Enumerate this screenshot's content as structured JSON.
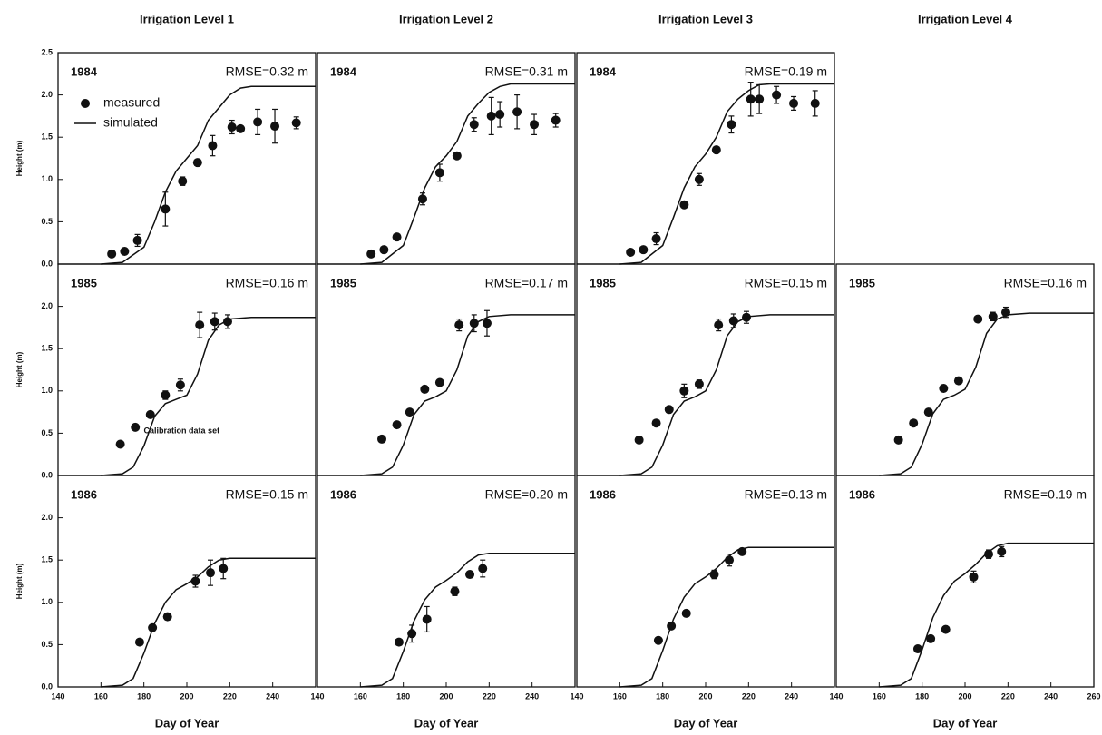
{
  "column_titles": [
    "Irrigation Level 1",
    "Irrigation Level 2",
    "Irrigation Level 3",
    "Irrigation Level 4"
  ],
  "color": "#111111",
  "chart_data": [
    {
      "type": "line",
      "year": "1984",
      "annotation": "RMSE=0.32 m",
      "legend": "upper left",
      "xlim": [
        140,
        260
      ],
      "ylim": [
        0,
        2.5
      ],
      "ylabel": "Height (m)",
      "yticks": [
        {
          "value": 0,
          "label": "0.0"
        },
        {
          "value": 0.5,
          "label": "0.5"
        },
        {
          "value": 1,
          "label": "1.0"
        },
        {
          "value": 1.5,
          "label": "1.5"
        },
        {
          "value": 2,
          "label": "2.0"
        },
        {
          "value": 2.5,
          "label": "2.5"
        }
      ],
      "series": [
        {
          "name": "measured",
          "x": [
            165,
            171,
            177,
            190,
            198,
            205,
            212,
            221,
            225,
            233,
            241,
            251
          ],
          "values": [
            0.12,
            0.15,
            0.28,
            0.65,
            0.98,
            1.2,
            1.4,
            1.62,
            1.6,
            1.68,
            1.63,
            1.67
          ],
          "errors": [
            0,
            0,
            0.07,
            0.2,
            0.05,
            0,
            0.12,
            0.08,
            0,
            0.15,
            0.2,
            0.07
          ]
        },
        {
          "name": "simulated",
          "x": [
            160,
            170,
            180,
            185,
            190,
            195,
            200,
            205,
            210,
            215,
            220,
            225,
            230,
            260
          ],
          "values": [
            0,
            0.02,
            0.2,
            0.5,
            0.85,
            1.1,
            1.25,
            1.4,
            1.7,
            1.85,
            2.0,
            2.08,
            2.1,
            2.1
          ]
        }
      ]
    },
    {
      "type": "line",
      "year": "1984",
      "annotation": "RMSE=0.31 m",
      "xlim": [
        140,
        260
      ],
      "ylim": [
        0,
        2.5
      ],
      "series": [
        {
          "x": [
            165,
            171,
            177,
            189,
            197,
            205,
            213,
            221,
            225,
            233,
            241,
            251
          ],
          "values": [
            0.12,
            0.17,
            0.32,
            0.77,
            1.08,
            1.28,
            1.65,
            1.75,
            1.77,
            1.8,
            1.65,
            1.7
          ],
          "errors": [
            0,
            0,
            0,
            0.07,
            0.1,
            0,
            0.08,
            0.22,
            0.15,
            0.2,
            0.12,
            0.08
          ]
        },
        {
          "x": [
            160,
            170,
            180,
            185,
            190,
            195,
            200,
            205,
            210,
            215,
            220,
            225,
            230,
            260
          ],
          "values": [
            0,
            0.02,
            0.22,
            0.55,
            0.9,
            1.15,
            1.28,
            1.45,
            1.75,
            1.9,
            2.03,
            2.1,
            2.13,
            2.13
          ]
        }
      ]
    },
    {
      "type": "line",
      "year": "1984",
      "annotation": "RMSE=0.19 m",
      "xlim": [
        140,
        260
      ],
      "ylim": [
        0,
        2.5
      ],
      "series": [
        {
          "x": [
            165,
            171,
            177,
            190,
            197,
            205,
            212,
            221,
            225,
            233,
            241,
            251
          ],
          "values": [
            0.14,
            0.17,
            0.3,
            0.7,
            1.0,
            1.35,
            1.65,
            1.95,
            1.95,
            2.0,
            1.9,
            1.9
          ],
          "errors": [
            0,
            0,
            0.07,
            0,
            0.07,
            0,
            0.1,
            0.2,
            0.17,
            0.1,
            0.08,
            0.15
          ]
        },
        {
          "x": [
            160,
            170,
            180,
            185,
            190,
            195,
            200,
            205,
            210,
            215,
            220,
            225,
            230,
            260
          ],
          "values": [
            0,
            0.02,
            0.22,
            0.55,
            0.9,
            1.15,
            1.3,
            1.5,
            1.8,
            1.95,
            2.05,
            2.12,
            2.13,
            2.13
          ]
        }
      ]
    },
    {
      "type": "line",
      "year": "1985",
      "annotation": "RMSE=0.16 m",
      "note": "Calibration data set",
      "xlim": [
        140,
        260
      ],
      "ylim": [
        0,
        2.5
      ],
      "ylabel": "Height (m)",
      "yticks": [
        {
          "value": 0,
          "label": "0.0"
        },
        {
          "value": 0.5,
          "label": "0.5"
        },
        {
          "value": 1,
          "label": "1.0"
        },
        {
          "value": 1.5,
          "label": "1.5"
        },
        {
          "value": 2,
          "label": "2.0"
        }
      ],
      "series": [
        {
          "x": [
            169,
            176,
            183,
            190,
            197,
            206,
            213,
            219
          ],
          "values": [
            0.37,
            0.57,
            0.72,
            0.95,
            1.07,
            1.78,
            1.82,
            1.82
          ],
          "errors": [
            0,
            0,
            0,
            0.05,
            0.07,
            0.15,
            0.1,
            0.08
          ]
        },
        {
          "x": [
            160,
            170,
            175,
            180,
            185,
            190,
            195,
            200,
            205,
            210,
            215,
            220,
            230,
            260
          ],
          "values": [
            0,
            0.02,
            0.1,
            0.35,
            0.7,
            0.85,
            0.9,
            0.95,
            1.2,
            1.6,
            1.78,
            1.85,
            1.87,
            1.87
          ]
        }
      ]
    },
    {
      "type": "line",
      "year": "1985",
      "annotation": "RMSE=0.17 m",
      "xlim": [
        140,
        260
      ],
      "ylim": [
        0,
        2.5
      ],
      "series": [
        {
          "x": [
            170,
            177,
            183,
            190,
            197,
            206,
            213,
            219
          ],
          "values": [
            0.43,
            0.6,
            0.75,
            1.02,
            1.1,
            1.78,
            1.8,
            1.8
          ],
          "errors": [
            0,
            0,
            0,
            0,
            0,
            0.07,
            0.1,
            0.15
          ]
        },
        {
          "x": [
            160,
            170,
            175,
            180,
            185,
            190,
            195,
            200,
            205,
            210,
            215,
            220,
            230,
            260
          ],
          "values": [
            0,
            0.02,
            0.1,
            0.36,
            0.72,
            0.88,
            0.93,
            1.0,
            1.25,
            1.65,
            1.82,
            1.88,
            1.9,
            1.9
          ]
        }
      ]
    },
    {
      "type": "line",
      "year": "1985",
      "annotation": "RMSE=0.15 m",
      "xlim": [
        140,
        260
      ],
      "ylim": [
        0,
        2.5
      ],
      "series": [
        {
          "x": [
            169,
            177,
            183,
            190,
            197,
            206,
            213,
            219
          ],
          "values": [
            0.42,
            0.62,
            0.78,
            1.0,
            1.08,
            1.78,
            1.83,
            1.87
          ],
          "errors": [
            0,
            0,
            0,
            0.08,
            0.05,
            0.07,
            0.08,
            0.07
          ]
        },
        {
          "x": [
            160,
            170,
            175,
            180,
            185,
            190,
            195,
            200,
            205,
            210,
            215,
            220,
            230,
            260
          ],
          "values": [
            0,
            0.02,
            0.1,
            0.36,
            0.72,
            0.88,
            0.93,
            1.0,
            1.25,
            1.65,
            1.82,
            1.88,
            1.9,
            1.9
          ]
        }
      ]
    },
    {
      "type": "line",
      "year": "1985",
      "annotation": "RMSE=0.16 m",
      "xlim": [
        140,
        260
      ],
      "ylim": [
        0,
        2.5
      ],
      "series": [
        {
          "x": [
            169,
            176,
            183,
            190,
            197,
            206,
            213,
            219
          ],
          "values": [
            0.42,
            0.62,
            0.75,
            1.03,
            1.12,
            1.85,
            1.88,
            1.93
          ],
          "errors": [
            0,
            0,
            0,
            0,
            0,
            0,
            0.05,
            0.06
          ]
        },
        {
          "x": [
            160,
            170,
            175,
            180,
            185,
            190,
            195,
            200,
            205,
            210,
            215,
            220,
            230,
            260
          ],
          "values": [
            0,
            0.02,
            0.1,
            0.37,
            0.73,
            0.9,
            0.95,
            1.02,
            1.28,
            1.68,
            1.85,
            1.9,
            1.92,
            1.92
          ]
        }
      ]
    },
    {
      "type": "line",
      "year": "1986",
      "annotation": "RMSE=0.15 m",
      "xlim": [
        140,
        260
      ],
      "ylim": [
        0,
        2.5
      ],
      "ylabel": "Height (m)",
      "xlabel": "Day of Year",
      "xticks": [
        140,
        160,
        180,
        200,
        220,
        240
      ],
      "yticks": [
        {
          "value": 0,
          "label": "0.0"
        },
        {
          "value": 0.5,
          "label": "0.5"
        },
        {
          "value": 1,
          "label": "1.0"
        },
        {
          "value": 1.5,
          "label": "1.5"
        },
        {
          "value": 2,
          "label": "2.0"
        }
      ],
      "series": [
        {
          "x": [
            178,
            184,
            191,
            204,
            211,
            217
          ],
          "values": [
            0.53,
            0.7,
            0.83,
            1.25,
            1.35,
            1.4
          ],
          "errors": [
            0,
            0,
            0,
            0.07,
            0.15,
            0.12
          ]
        },
        {
          "x": [
            160,
            170,
            175,
            180,
            185,
            190,
            195,
            200,
            205,
            210,
            215,
            220,
            260
          ],
          "values": [
            0,
            0.02,
            0.1,
            0.4,
            0.75,
            1.0,
            1.15,
            1.22,
            1.3,
            1.42,
            1.5,
            1.52,
            1.52
          ]
        }
      ]
    },
    {
      "type": "line",
      "year": "1986",
      "annotation": "RMSE=0.20 m",
      "xlim": [
        140,
        260
      ],
      "ylim": [
        0,
        2.5
      ],
      "xlabel": "Day of Year",
      "xticks": [
        140,
        160,
        180,
        200,
        220,
        240
      ],
      "series": [
        {
          "x": [
            178,
            184,
            191,
            204,
            211,
            217
          ],
          "values": [
            0.53,
            0.63,
            0.8,
            1.13,
            1.33,
            1.4
          ],
          "errors": [
            0,
            0.1,
            0.15,
            0.05,
            0,
            0.1
          ]
        },
        {
          "x": [
            160,
            170,
            175,
            180,
            185,
            190,
            195,
            200,
            205,
            210,
            215,
            220,
            260
          ],
          "values": [
            0,
            0.02,
            0.1,
            0.42,
            0.78,
            1.03,
            1.18,
            1.26,
            1.35,
            1.48,
            1.56,
            1.58,
            1.58
          ]
        }
      ]
    },
    {
      "type": "line",
      "year": "1986",
      "annotation": "RMSE=0.13 m",
      "xlim": [
        140,
        260
      ],
      "ylim": [
        0,
        2.5
      ],
      "xlabel": "Day of Year",
      "xticks": [
        140,
        160,
        180,
        200,
        220,
        240
      ],
      "series": [
        {
          "x": [
            178,
            184,
            191,
            204,
            211,
            217
          ],
          "values": [
            0.55,
            0.72,
            0.87,
            1.33,
            1.5,
            1.6
          ],
          "errors": [
            0,
            0,
            0,
            0.05,
            0.07,
            0
          ]
        },
        {
          "x": [
            160,
            170,
            175,
            180,
            185,
            190,
            195,
            200,
            205,
            210,
            215,
            220,
            260
          ],
          "values": [
            0,
            0.02,
            0.1,
            0.43,
            0.8,
            1.06,
            1.22,
            1.3,
            1.4,
            1.53,
            1.62,
            1.65,
            1.65
          ]
        }
      ]
    },
    {
      "type": "line",
      "year": "1986",
      "annotation": "RMSE=0.19 m",
      "xlim": [
        140,
        260
      ],
      "ylim": [
        0,
        2.5
      ],
      "xlabel": "Day of Year",
      "xticks": [
        140,
        160,
        180,
        200,
        220,
        240,
        260
      ],
      "series": [
        {
          "x": [
            178,
            184,
            191,
            204,
            211,
            217
          ],
          "values": [
            0.45,
            0.57,
            0.68,
            1.3,
            1.57,
            1.6
          ],
          "errors": [
            0,
            0,
            0,
            0.07,
            0.05,
            0.06
          ]
        },
        {
          "x": [
            160,
            170,
            175,
            180,
            185,
            190,
            195,
            200,
            205,
            210,
            215,
            220,
            260
          ],
          "values": [
            0,
            0.02,
            0.1,
            0.44,
            0.82,
            1.08,
            1.25,
            1.34,
            1.45,
            1.58,
            1.67,
            1.7,
            1.7
          ]
        }
      ]
    }
  ]
}
